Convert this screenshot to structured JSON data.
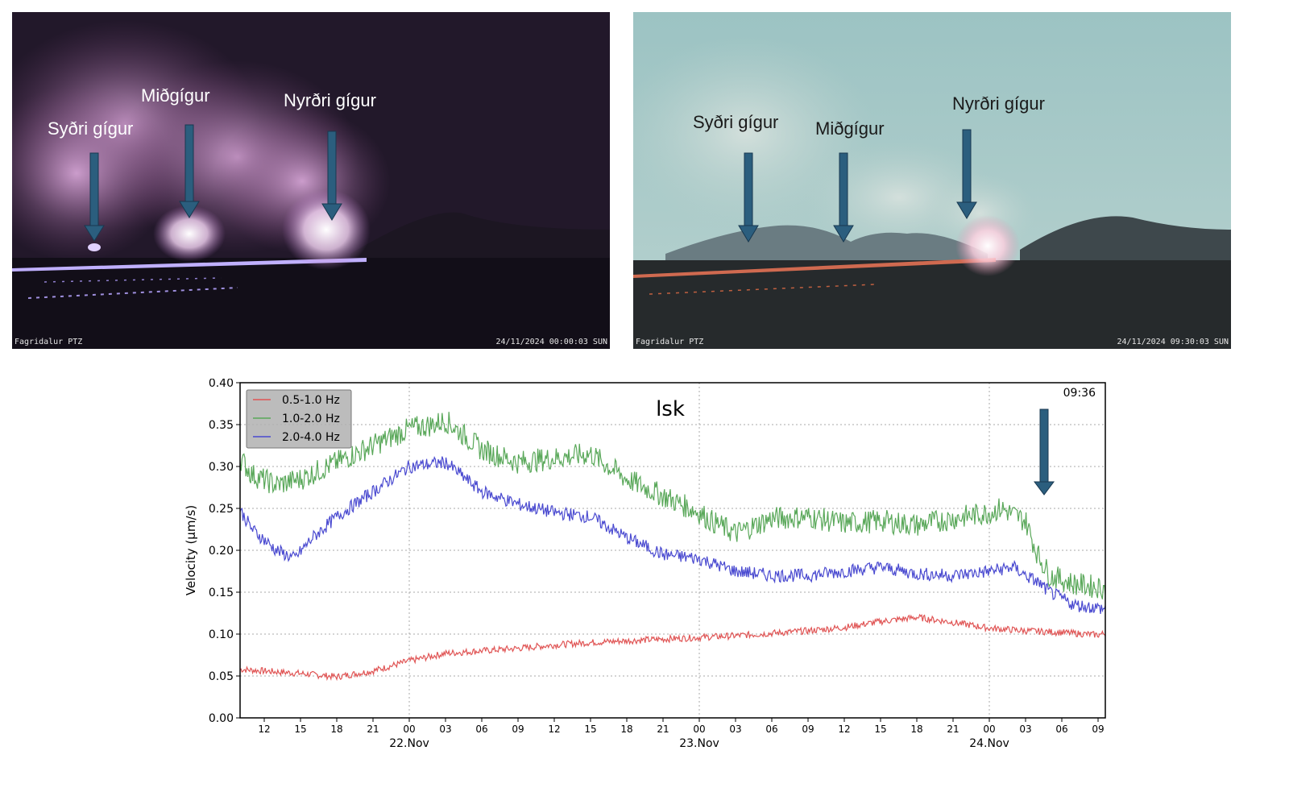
{
  "photos": [
    {
      "camera": "Fagridalur PTZ",
      "timestamp": "24/11/2024 00:00:03 SUN",
      "labels": [
        "Syðri gígur",
        "Miðgígur",
        "Nyrðri gígur"
      ],
      "mode": "night"
    },
    {
      "camera": "Fagridalur PTZ",
      "timestamp": "24/11/2024 09:30:03 SUN",
      "labels": [
        "Syðri gígur",
        "Miðgígur",
        "Nyrðri gígur"
      ],
      "mode": "day"
    }
  ],
  "chart_data": {
    "type": "line",
    "title": "lsk",
    "time_label": "09:36",
    "ylabel": "Velocity (μm/s)",
    "ylim": [
      0,
      0.4
    ],
    "yticks": [
      "0.00",
      "0.05",
      "0.10",
      "0.15",
      "0.20",
      "0.25",
      "0.30",
      "0.35",
      "0.40"
    ],
    "x_hours_start": "21.Nov 10:00",
    "xlim_hours": [
      10,
      57.6
    ],
    "xticks": [
      {
        "h": 12,
        "label": "12"
      },
      {
        "h": 15,
        "label": "15"
      },
      {
        "h": 18,
        "label": "18"
      },
      {
        "h": 21,
        "label": "21"
      },
      {
        "h": 24,
        "label": "00"
      },
      {
        "h": 27,
        "label": "03"
      },
      {
        "h": 30,
        "label": "06"
      },
      {
        "h": 33,
        "label": "09"
      },
      {
        "h": 36,
        "label": "12"
      },
      {
        "h": 39,
        "label": "15"
      },
      {
        "h": 42,
        "label": "18"
      },
      {
        "h": 45,
        "label": "21"
      },
      {
        "h": 48,
        "label": "00"
      },
      {
        "h": 51,
        "label": "03"
      },
      {
        "h": 54,
        "label": "06"
      },
      {
        "h": 57,
        "label": "09"
      },
      {
        "h": 60,
        "label": "12"
      },
      {
        "h": 63,
        "label": "15"
      },
      {
        "h": 66,
        "label": "18"
      },
      {
        "h": 69,
        "label": "21"
      },
      {
        "h": 72,
        "label": "00"
      },
      {
        "h": 75,
        "label": "03"
      },
      {
        "h": 78,
        "label": "06"
      },
      {
        "h": 81,
        "label": "09"
      }
    ],
    "day_labels": [
      {
        "h": 24,
        "label": "22.Nov"
      },
      {
        "h": 48,
        "label": "23.Nov"
      },
      {
        "h": 72,
        "label": "24.Nov"
      }
    ],
    "legend_position": "top-left",
    "grid": true,
    "series": [
      {
        "name": "0.5-1.0 Hz",
        "color": "#e05555",
        "points": [
          [
            10,
            0.058
          ],
          [
            12,
            0.056
          ],
          [
            15,
            0.053
          ],
          [
            18,
            0.049
          ],
          [
            21,
            0.056
          ],
          [
            24,
            0.068
          ],
          [
            27,
            0.077
          ],
          [
            30,
            0.08
          ],
          [
            33,
            0.083
          ],
          [
            36,
            0.087
          ],
          [
            39,
            0.09
          ],
          [
            42,
            0.092
          ],
          [
            45,
            0.094
          ],
          [
            48,
            0.096
          ],
          [
            51,
            0.098
          ],
          [
            54,
            0.101
          ],
          [
            57,
            0.104
          ],
          [
            60,
            0.108
          ],
          [
            63,
            0.115
          ],
          [
            66,
            0.12
          ],
          [
            69,
            0.114
          ],
          [
            72,
            0.107
          ],
          [
            75,
            0.104
          ],
          [
            78,
            0.102
          ],
          [
            81,
            0.099
          ],
          [
            81.6,
            0.101
          ]
        ]
      },
      {
        "name": "1.0-2.0 Hz",
        "color": "#5aa85a",
        "points": [
          [
            10,
            0.31
          ],
          [
            11,
            0.29
          ],
          [
            13,
            0.278
          ],
          [
            15,
            0.285
          ],
          [
            18,
            0.305
          ],
          [
            21,
            0.325
          ],
          [
            24,
            0.345
          ],
          [
            26,
            0.35
          ],
          [
            27,
            0.355
          ],
          [
            30,
            0.32
          ],
          [
            33,
            0.305
          ],
          [
            36,
            0.31
          ],
          [
            39,
            0.315
          ],
          [
            42,
            0.285
          ],
          [
            45,
            0.265
          ],
          [
            48,
            0.245
          ],
          [
            49,
            0.235
          ],
          [
            51,
            0.22
          ],
          [
            54,
            0.238
          ],
          [
            57,
            0.24
          ],
          [
            60,
            0.232
          ],
          [
            63,
            0.235
          ],
          [
            66,
            0.23
          ],
          [
            69,
            0.238
          ],
          [
            72,
            0.245
          ],
          [
            73,
            0.25
          ],
          [
            75,
            0.235
          ],
          [
            76,
            0.195
          ],
          [
            77,
            0.17
          ],
          [
            79,
            0.16
          ],
          [
            81.6,
            0.155
          ]
        ]
      },
      {
        "name": "2.0-4.0 Hz",
        "color": "#4a4ad0",
        "points": [
          [
            10,
            0.248
          ],
          [
            11,
            0.225
          ],
          [
            13,
            0.2
          ],
          [
            14.5,
            0.19
          ],
          [
            16,
            0.215
          ],
          [
            18,
            0.24
          ],
          [
            21,
            0.27
          ],
          [
            24,
            0.3
          ],
          [
            27,
            0.305
          ],
          [
            30,
            0.27
          ],
          [
            33,
            0.255
          ],
          [
            36,
            0.245
          ],
          [
            39,
            0.24
          ],
          [
            42,
            0.215
          ],
          [
            45,
            0.195
          ],
          [
            48,
            0.19
          ],
          [
            51,
            0.175
          ],
          [
            54,
            0.17
          ],
          [
            57,
            0.17
          ],
          [
            60,
            0.175
          ],
          [
            63,
            0.18
          ],
          [
            66,
            0.172
          ],
          [
            69,
            0.17
          ],
          [
            72,
            0.175
          ],
          [
            74,
            0.18
          ],
          [
            75,
            0.17
          ],
          [
            76,
            0.162
          ],
          [
            77,
            0.15
          ],
          [
            79,
            0.135
          ],
          [
            81.6,
            0.13
          ]
        ]
      }
    ]
  }
}
